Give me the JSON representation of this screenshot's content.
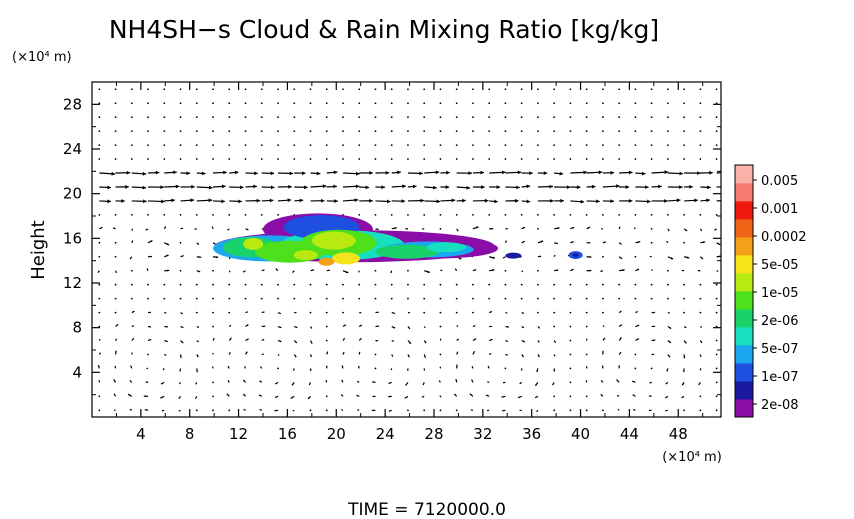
{
  "chart_data": {
    "type": "heatmap",
    "title": "NH4SH−s Cloud & Rain Mixing Ratio [kg/kg]",
    "ylabel": "Height",
    "y_unit": "(×10⁴ m)",
    "x_unit": "(×10⁴ m)",
    "xlim": [
      0,
      51.5
    ],
    "ylim": [
      0,
      30
    ],
    "xticks": [
      4,
      8,
      12,
      16,
      20,
      24,
      28,
      32,
      36,
      40,
      44,
      48
    ],
    "yticks": [
      4,
      8,
      12,
      16,
      20,
      24,
      28
    ],
    "grid": false,
    "colorbar": {
      "labels": [
        "0.005",
        "0.001",
        "0.0002",
        "5e-05",
        "1e-05",
        "2e-06",
        "5e-07",
        "1e-07",
        "2e-08"
      ],
      "colors": [
        "#8a0da8",
        "#1a1aa0",
        "#1f4fe0",
        "#1aa7f0",
        "#16e0c0",
        "#19d26a",
        "#4ee01a",
        "#b8ea12",
        "#f5e41a",
        "#f5a019",
        "#f06418",
        "#ee1a10",
        "#f77a6e",
        "#f9b2a8"
      ]
    },
    "cloud_regions": [
      {
        "x_range": [
          11,
          31.5
        ],
        "y_range": [
          13,
          18.5
        ],
        "max_value": "0.0002"
      },
      {
        "x_range": [
          34,
          35
        ],
        "y_range": [
          14.2,
          14.7
        ],
        "max_value": "1e-07"
      },
      {
        "x_range": [
          39,
          40.2
        ],
        "y_range": [
          14.1,
          14.9
        ],
        "max_value": "5e-07"
      }
    ],
    "annotation": "TIME  =  7120000.0"
  }
}
